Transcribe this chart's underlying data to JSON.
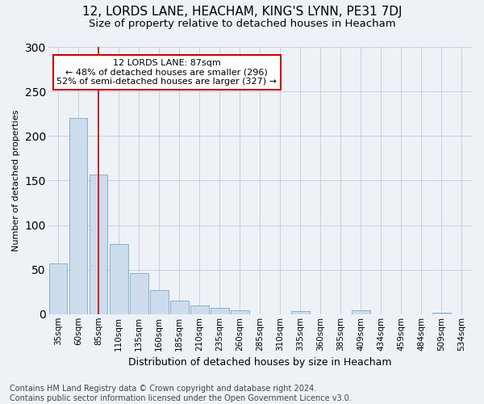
{
  "title": "12, LORDS LANE, HEACHAM, KING'S LYNN, PE31 7DJ",
  "subtitle": "Size of property relative to detached houses in Heacham",
  "xlabel": "Distribution of detached houses by size in Heacham",
  "ylabel": "Number of detached properties",
  "bar_color": "#ccdcec",
  "bar_edge_color": "#7aaac8",
  "vline_color": "#cc0000",
  "annotation_title": "12 LORDS LANE: 87sqm",
  "annotation_line1": "← 48% of detached houses are smaller (296)",
  "annotation_line2": "52% of semi-detached houses are larger (327) →",
  "categories": [
    "35sqm",
    "60sqm",
    "85sqm",
    "110sqm",
    "135sqm",
    "160sqm",
    "185sqm",
    "210sqm",
    "235sqm",
    "260sqm",
    "285sqm",
    "310sqm",
    "335sqm",
    "360sqm",
    "385sqm",
    "409sqm",
    "434sqm",
    "459sqm",
    "484sqm",
    "509sqm",
    "534sqm"
  ],
  "values": [
    57,
    220,
    157,
    79,
    46,
    27,
    15,
    10,
    7,
    4,
    0,
    0,
    3,
    0,
    0,
    4,
    0,
    0,
    0,
    2,
    0
  ],
  "vline_index": 2.0,
  "ylim": [
    0,
    300
  ],
  "yticks": [
    0,
    50,
    100,
    150,
    200,
    250,
    300
  ],
  "footer": "Contains HM Land Registry data © Crown copyright and database right 2024.\nContains public sector information licensed under the Open Government Licence v3.0.",
  "bg_color": "#eef2f7",
  "plot_bg_color": "#eef2f7",
  "grid_color": "#c8cede",
  "title_fontsize": 11,
  "subtitle_fontsize": 9.5,
  "xlabel_fontsize": 9,
  "ylabel_fontsize": 8,
  "tick_fontsize": 7.5,
  "footer_fontsize": 7,
  "annotation_fontsize": 8,
  "annotation_box_color": "white",
  "annotation_box_edge": "#cc0000"
}
